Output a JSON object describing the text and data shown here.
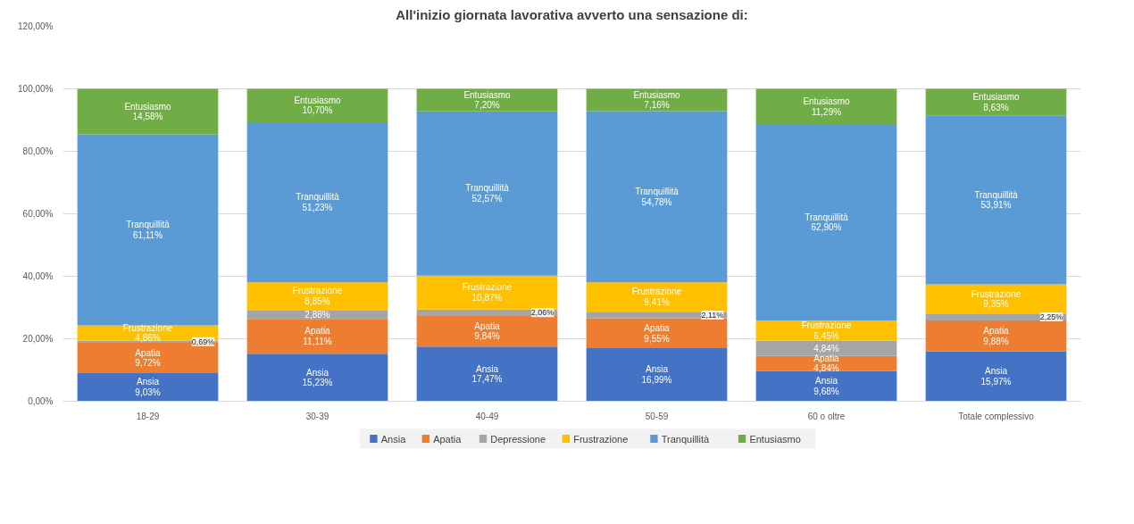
{
  "chart_data": {
    "type": "bar",
    "title": "All'inizio giornata lavorativa avverto una sensazione di:",
    "stacked": true,
    "categories": [
      "18-29",
      "30-39",
      "40-49",
      "50-59",
      "60 o oltre",
      "Totale complessivo"
    ],
    "series": [
      {
        "name": "Ansia",
        "color": "#4472c4",
        "values": [
          9.03,
          15.23,
          17.47,
          16.99,
          9.68,
          15.97
        ],
        "value_labels": [
          "Ansia\n9,03%",
          "Ansia\n15,23%",
          "Ansia\n17,47%",
          "Ansia\n16,99%",
          "Ansia\n9,68%",
          "Ansia\n15,97%"
        ]
      },
      {
        "name": "Apatia",
        "color": "#ed7d31",
        "values": [
          9.72,
          11.11,
          9.84,
          9.55,
          4.84,
          9.88
        ],
        "value_labels": [
          "Apatia\n9,72%",
          "Apatia\n11,11%",
          "Apatia\n9,84%",
          "Apatia\n9,55%",
          "Apatia\n4,84%",
          "Apatia\n9,88%"
        ]
      },
      {
        "name": "Depressione",
        "color": "#a5a5a5",
        "values": [
          0.69,
          2.88,
          2.06,
          2.11,
          4.84,
          2.25
        ],
        "value_labels": [
          "0,69%",
          "2,88%",
          "2,06%",
          "2,11%",
          "4,84%",
          "2,25%"
        ]
      },
      {
        "name": "Frustrazione",
        "color": "#ffc000",
        "values": [
          4.86,
          8.85,
          10.87,
          9.41,
          6.45,
          9.35
        ],
        "value_labels": [
          "Frustrazione\n4,86%",
          "Frustrazione\n8,85%",
          "Frustrazione\n10,87%",
          "Frustrazione\n9,41%",
          "Frustrazione\n6,45%",
          "Frustrazione\n9,35%"
        ]
      },
      {
        "name": "Tranquillità",
        "color": "#5b9bd5",
        "values": [
          61.11,
          51.23,
          52.57,
          54.78,
          62.9,
          53.91
        ],
        "value_labels": [
          "Tranquillità\n61,11%",
          "Tranquillità\n51,23%",
          "Tranquillità\n52,57%",
          "Tranquillità\n54,78%",
          "Tranquillità\n62,90%",
          "Tranquillità\n53,91%"
        ]
      },
      {
        "name": "Entusiasmo",
        "color": "#70ad47",
        "values": [
          14.58,
          10.7,
          7.2,
          7.16,
          11.29,
          8.63
        ],
        "value_labels": [
          "Entusiasmo\n14,58%",
          "Entusiasmo\n10,70%",
          "Entusiasmo\n7,20%",
          "Entusiasmo\n7,16%",
          "Entusiasmo\n11,29%",
          "Entusiasmo\n8,63%"
        ]
      }
    ],
    "ylim": [
      0,
      120
    ],
    "yticks": [
      {
        "value": 0,
        "label": "0,00%"
      },
      {
        "value": 20,
        "label": "20,00%"
      },
      {
        "value": 40,
        "label": "40,00%"
      },
      {
        "value": 60,
        "label": "60,00%"
      },
      {
        "value": 80,
        "label": "80,00%"
      },
      {
        "value": 100,
        "label": "100,00%"
      },
      {
        "value": 120,
        "label": "120,00%"
      }
    ],
    "grid": "y",
    "legend": "bottom"
  }
}
